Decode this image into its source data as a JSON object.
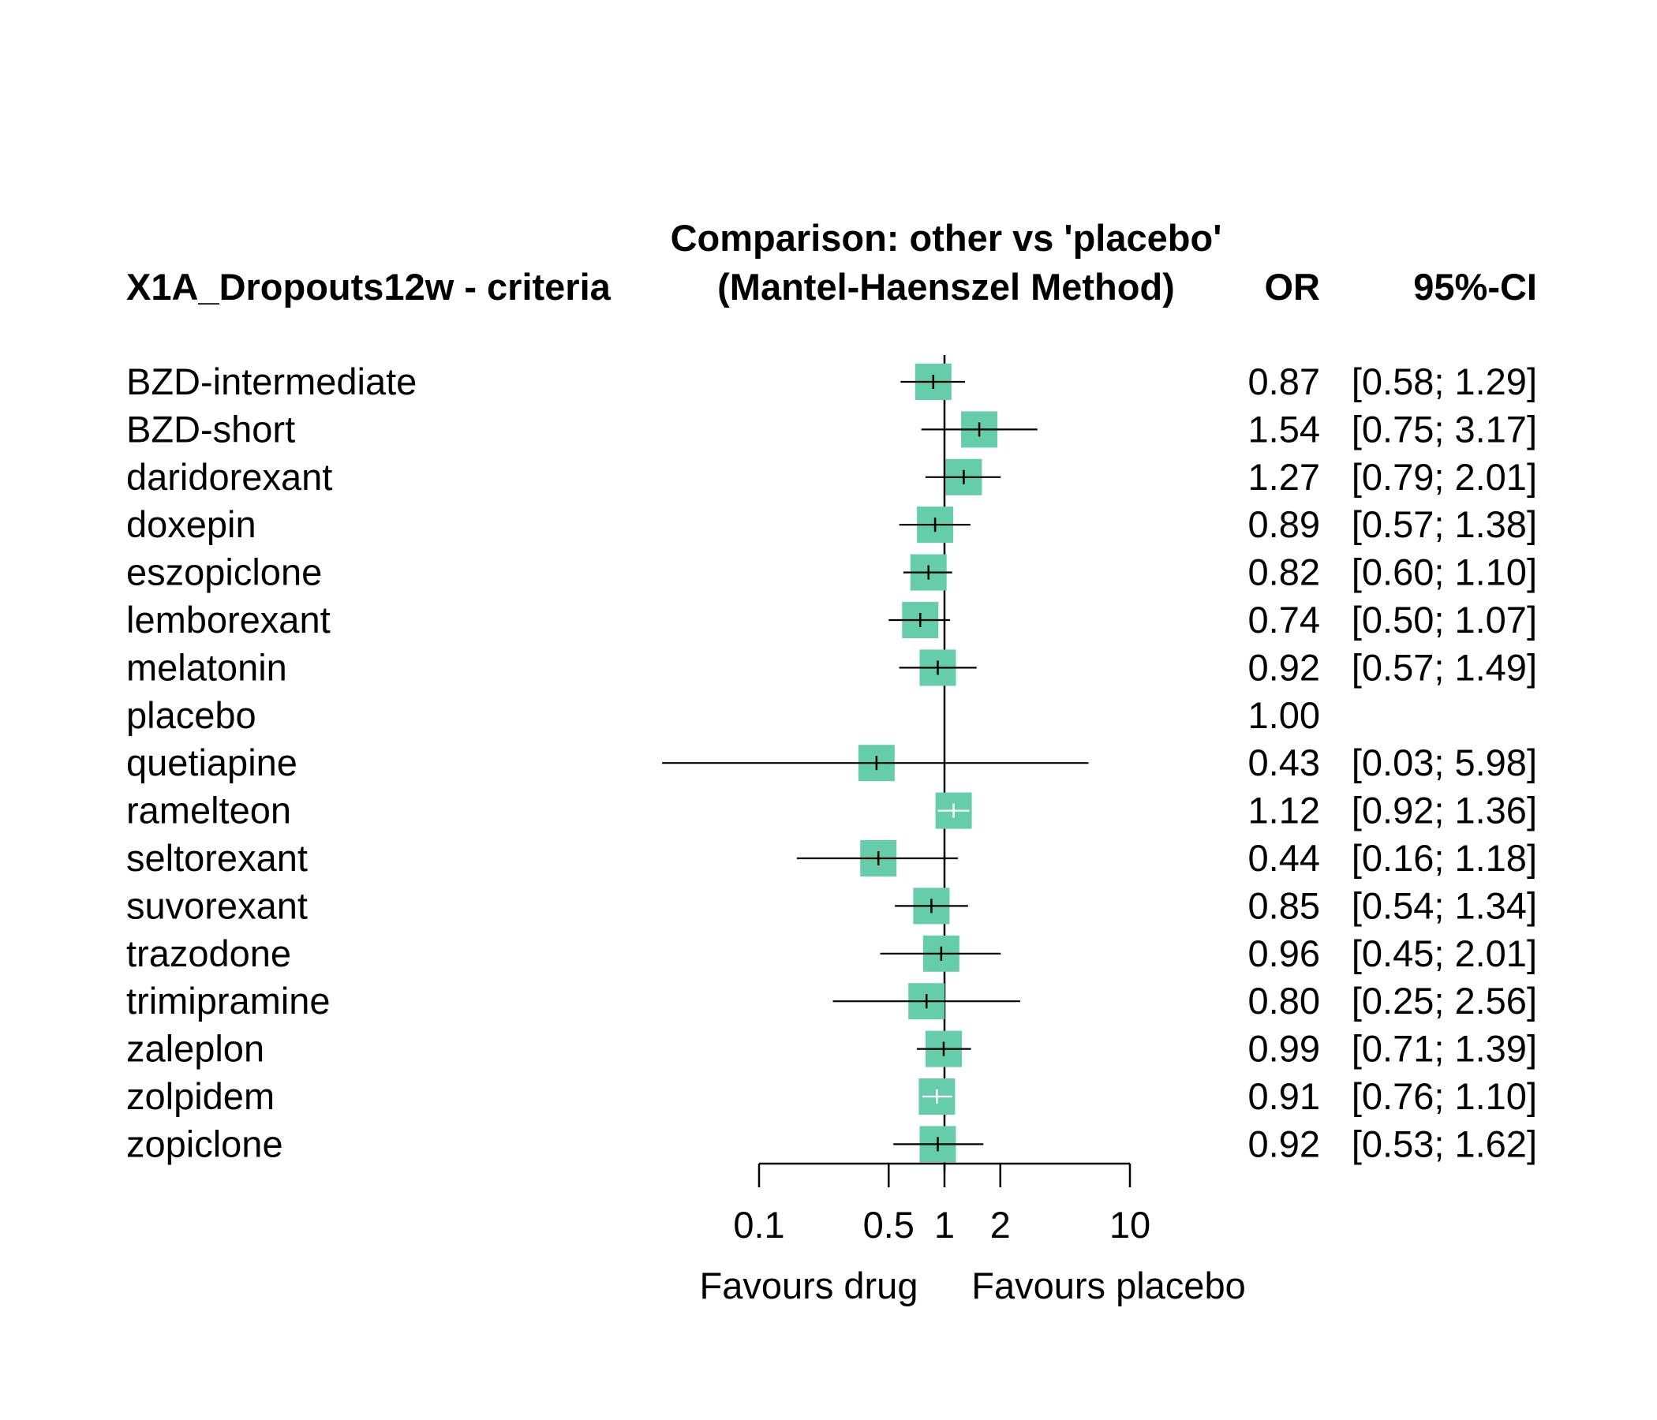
{
  "chart_data": {
    "type": "forest",
    "title": "Comparison: other vs 'placebo'",
    "subtitle": "(Mantel-Haenszel Method)",
    "left_header": "X1A_Dropouts12w - criteria",
    "or_header": "OR",
    "ci_header": "95%-CI",
    "x_scale": "log",
    "xlim": [
      0.1,
      10
    ],
    "x_ticks": [
      0.1,
      0.5,
      1,
      2,
      10
    ],
    "x_tick_labels": [
      "0.1",
      "0.5",
      "1",
      "2",
      "10"
    ],
    "xlabel_left": "Favours drug",
    "xlabel_right": "Favours placebo",
    "reference_value": 1,
    "box_color": "#66cdaa",
    "rows": [
      {
        "name": "BZD-intermediate",
        "or": 0.87,
        "lower": 0.58,
        "upper": 1.29,
        "or_text": "0.87",
        "ci_text": "[0.58; 1.29]"
      },
      {
        "name": "BZD-short",
        "or": 1.54,
        "lower": 0.75,
        "upper": 3.17,
        "or_text": "1.54",
        "ci_text": "[0.75; 3.17]"
      },
      {
        "name": "daridorexant",
        "or": 1.27,
        "lower": 0.79,
        "upper": 2.01,
        "or_text": "1.27",
        "ci_text": "[0.79; 2.01]"
      },
      {
        "name": "doxepin",
        "or": 0.89,
        "lower": 0.57,
        "upper": 1.38,
        "or_text": "0.89",
        "ci_text": "[0.57; 1.38]"
      },
      {
        "name": "eszopiclone",
        "or": 0.82,
        "lower": 0.6,
        "upper": 1.1,
        "or_text": "0.82",
        "ci_text": "[0.60; 1.10]"
      },
      {
        "name": "lemborexant",
        "or": 0.74,
        "lower": 0.5,
        "upper": 1.07,
        "or_text": "0.74",
        "ci_text": "[0.50; 1.07]"
      },
      {
        "name": "melatonin",
        "or": 0.92,
        "lower": 0.57,
        "upper": 1.49,
        "or_text": "0.92",
        "ci_text": "[0.57; 1.49]"
      },
      {
        "name": "placebo",
        "or": 1.0,
        "lower": null,
        "upper": null,
        "or_text": "1.00",
        "ci_text": ""
      },
      {
        "name": "quetiapine",
        "or": 0.43,
        "lower": 0.03,
        "upper": 5.98,
        "or_text": "0.43",
        "ci_text": "[0.03; 5.98]"
      },
      {
        "name": "ramelteon",
        "or": 1.12,
        "lower": 0.92,
        "upper": 1.36,
        "or_text": "1.12",
        "ci_text": "[0.92; 1.36]"
      },
      {
        "name": "seltorexant",
        "or": 0.44,
        "lower": 0.16,
        "upper": 1.18,
        "or_text": "0.44",
        "ci_text": "[0.16; 1.18]"
      },
      {
        "name": "suvorexant",
        "or": 0.85,
        "lower": 0.54,
        "upper": 1.34,
        "or_text": "0.85",
        "ci_text": "[0.54; 1.34]"
      },
      {
        "name": "trazodone",
        "or": 0.96,
        "lower": 0.45,
        "upper": 2.01,
        "or_text": "0.96",
        "ci_text": "[0.45; 2.01]"
      },
      {
        "name": "trimipramine",
        "or": 0.8,
        "lower": 0.25,
        "upper": 2.56,
        "or_text": "0.80",
        "ci_text": "[0.25; 2.56]"
      },
      {
        "name": "zaleplon",
        "or": 0.99,
        "lower": 0.71,
        "upper": 1.39,
        "or_text": "0.99",
        "ci_text": "[0.71; 1.39]"
      },
      {
        "name": "zolpidem",
        "or": 0.91,
        "lower": 0.76,
        "upper": 1.1,
        "or_text": "0.91",
        "ci_text": "[0.76; 1.10]"
      },
      {
        "name": "zopiclone",
        "or": 0.92,
        "lower": 0.53,
        "upper": 1.62,
        "or_text": "0.92",
        "ci_text": "[0.53; 1.62]"
      }
    ]
  }
}
